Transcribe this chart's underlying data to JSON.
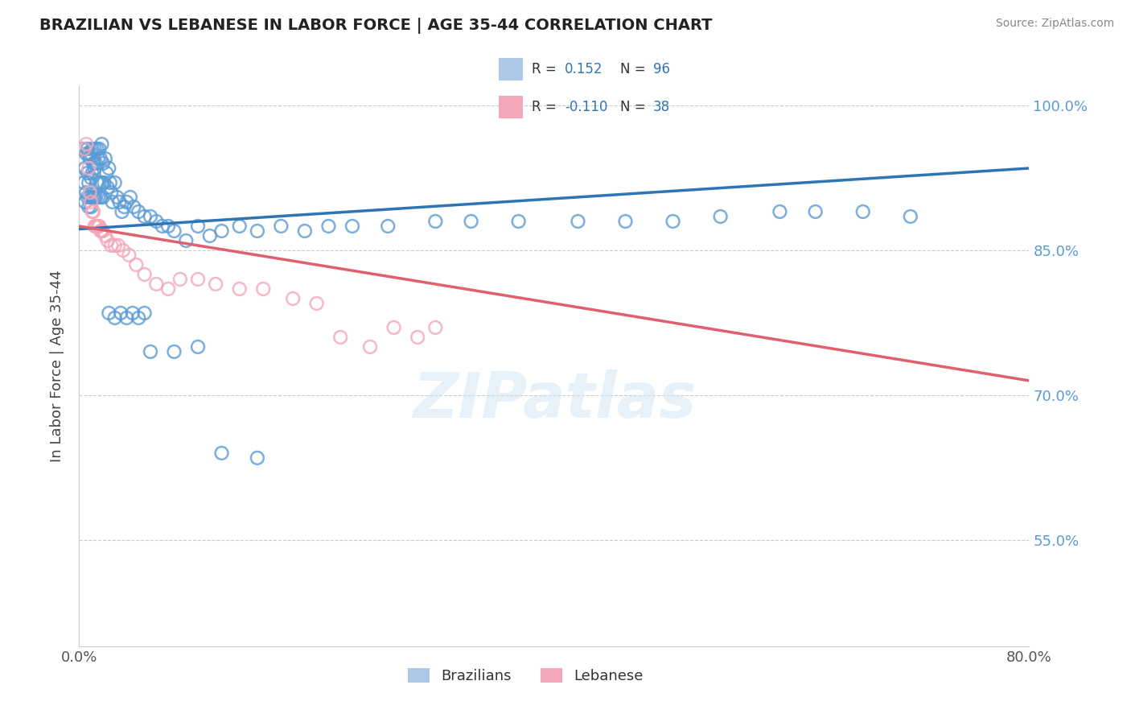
{
  "title": "BRAZILIAN VS LEBANESE IN LABOR FORCE | AGE 35-44 CORRELATION CHART",
  "source_text": "Source: ZipAtlas.com",
  "ylabel": "In Labor Force | Age 35-44",
  "xmin": 0.0,
  "xmax": 0.8,
  "ymin": 0.44,
  "ymax": 1.02,
  "ytick_vals": [
    0.55,
    0.7,
    0.85,
    1.0
  ],
  "ytick_labels": [
    "55.0%",
    "70.0%",
    "85.0%",
    "100.0%"
  ],
  "grid_color": "#cccccc",
  "blue_color": "#5b9bd5",
  "pink_color": "#f4a7b9",
  "blue_line_color": "#2e75b6",
  "pink_line_color": "#e06070",
  "R_blue": 0.152,
  "N_blue": 96,
  "R_pink": -0.11,
  "N_pink": 38,
  "legend_label_blue": "Brazilians",
  "legend_label_pink": "Lebanese",
  "watermark_text": "ZIPatlas",
  "blue_line": [
    0.0,
    0.872,
    0.8,
    0.935
  ],
  "pink_line": [
    0.0,
    0.875,
    0.8,
    0.715
  ],
  "blue_x": [
    0.003,
    0.004,
    0.005,
    0.005,
    0.006,
    0.006,
    0.007,
    0.007,
    0.007,
    0.008,
    0.008,
    0.008,
    0.009,
    0.009,
    0.01,
    0.01,
    0.01,
    0.011,
    0.011,
    0.011,
    0.012,
    0.012,
    0.013,
    0.013,
    0.013,
    0.014,
    0.014,
    0.015,
    0.015,
    0.016,
    0.016,
    0.017,
    0.017,
    0.018,
    0.018,
    0.019,
    0.019,
    0.02,
    0.02,
    0.021,
    0.022,
    0.023,
    0.024,
    0.025,
    0.026,
    0.027,
    0.028,
    0.03,
    0.032,
    0.034,
    0.036,
    0.038,
    0.04,
    0.043,
    0.046,
    0.05,
    0.055,
    0.06,
    0.065,
    0.07,
    0.075,
    0.08,
    0.09,
    0.1,
    0.11,
    0.12,
    0.135,
    0.15,
    0.17,
    0.19,
    0.21,
    0.23,
    0.26,
    0.3,
    0.33,
    0.37,
    0.42,
    0.46,
    0.5,
    0.54,
    0.59,
    0.62,
    0.66,
    0.7,
    0.12,
    0.15,
    0.06,
    0.08,
    0.1,
    0.025,
    0.03,
    0.035,
    0.04,
    0.045,
    0.05,
    0.055
  ],
  "blue_y": [
    0.955,
    0.92,
    0.935,
    0.9,
    0.95,
    0.91,
    0.955,
    0.93,
    0.905,
    0.95,
    0.92,
    0.895,
    0.945,
    0.905,
    0.95,
    0.925,
    0.895,
    0.955,
    0.93,
    0.905,
    0.94,
    0.905,
    0.955,
    0.935,
    0.905,
    0.94,
    0.905,
    0.955,
    0.92,
    0.945,
    0.905,
    0.955,
    0.92,
    0.945,
    0.905,
    0.96,
    0.92,
    0.94,
    0.905,
    0.92,
    0.945,
    0.93,
    0.915,
    0.935,
    0.92,
    0.91,
    0.9,
    0.92,
    0.905,
    0.9,
    0.89,
    0.895,
    0.9,
    0.905,
    0.895,
    0.89,
    0.885,
    0.885,
    0.88,
    0.875,
    0.875,
    0.87,
    0.86,
    0.875,
    0.865,
    0.87,
    0.875,
    0.87,
    0.875,
    0.87,
    0.875,
    0.875,
    0.875,
    0.88,
    0.88,
    0.88,
    0.88,
    0.88,
    0.88,
    0.885,
    0.89,
    0.89,
    0.89,
    0.885,
    0.64,
    0.635,
    0.745,
    0.745,
    0.75,
    0.785,
    0.78,
    0.785,
    0.78,
    0.785,
    0.78,
    0.785
  ],
  "pink_x": [
    0.004,
    0.006,
    0.008,
    0.009,
    0.01,
    0.011,
    0.012,
    0.013,
    0.014,
    0.015,
    0.016,
    0.017,
    0.018,
    0.019,
    0.02,
    0.022,
    0.024,
    0.027,
    0.03,
    0.033,
    0.037,
    0.042,
    0.048,
    0.055,
    0.065,
    0.075,
    0.085,
    0.1,
    0.115,
    0.135,
    0.155,
    0.18,
    0.2,
    0.22,
    0.245,
    0.265,
    0.285,
    0.3
  ],
  "pink_y": [
    0.955,
    0.96,
    0.935,
    0.91,
    0.9,
    0.89,
    0.89,
    0.875,
    0.875,
    0.875,
    0.875,
    0.875,
    0.87,
    0.87,
    0.87,
    0.865,
    0.86,
    0.855,
    0.855,
    0.855,
    0.85,
    0.845,
    0.835,
    0.825,
    0.815,
    0.81,
    0.82,
    0.82,
    0.815,
    0.81,
    0.81,
    0.8,
    0.795,
    0.76,
    0.75,
    0.77,
    0.76,
    0.77
  ]
}
